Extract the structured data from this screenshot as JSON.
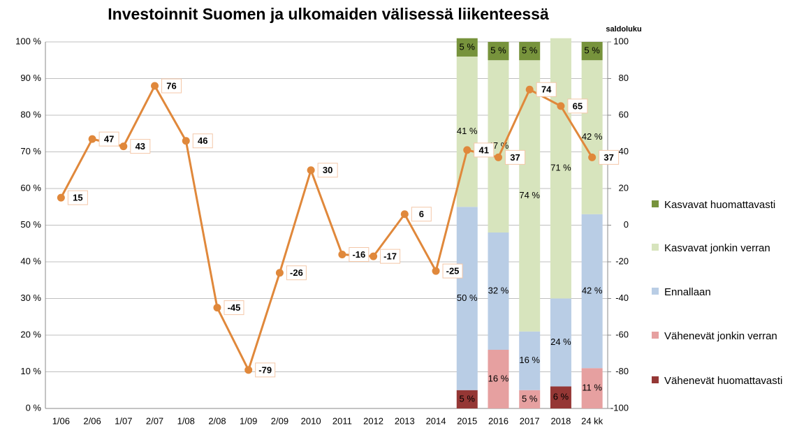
{
  "chart_data": {
    "type": "bar_line",
    "title": "Investoinnit Suomen ja ulkomaiden välisessä liikenteessä",
    "y2_label": "saldoluku",
    "categories": [
      "1/06",
      "2/06",
      "1/07",
      "2/07",
      "1/08",
      "2/08",
      "1/09",
      "2/09",
      "2010",
      "2011",
      "2012",
      "2013",
      "2014",
      "2015",
      "2016",
      "2017",
      "2018",
      "24 kk"
    ],
    "ylim": [
      0,
      100
    ],
    "yticks": [
      {
        "value": 0,
        "label": "0 %"
      },
      {
        "value": 10,
        "label": "10 %"
      },
      {
        "value": 20,
        "label": "20 %"
      },
      {
        "value": 30,
        "label": "30 %"
      },
      {
        "value": 40,
        "label": "40 %"
      },
      {
        "value": 50,
        "label": "50 %"
      },
      {
        "value": 60,
        "label": "60 %"
      },
      {
        "value": 70,
        "label": "70 %"
      },
      {
        "value": 80,
        "label": "80 %"
      },
      {
        "value": 90,
        "label": "90 %"
      },
      {
        "value": 100,
        "label": "100 %"
      }
    ],
    "y2lim": [
      -100,
      100
    ],
    "y2ticks": [
      -100,
      -80,
      -60,
      -40,
      -20,
      0,
      20,
      40,
      60,
      80,
      100
    ],
    "grid": true,
    "legend": "right",
    "series": [
      {
        "name": "Vähenevät huomattavasti",
        "color": "#953735",
        "values": [
          null,
          null,
          null,
          null,
          null,
          null,
          null,
          null,
          null,
          null,
          null,
          null,
          null,
          5,
          null,
          null,
          6,
          null
        ],
        "value_labels": [
          null,
          null,
          null,
          null,
          null,
          null,
          null,
          null,
          null,
          null,
          null,
          null,
          null,
          "5 %",
          null,
          null,
          "6 %",
          null
        ]
      },
      {
        "name": "Vähenevät jonkin verran",
        "color": "#e6a0a0",
        "values": [
          null,
          null,
          null,
          null,
          null,
          null,
          null,
          null,
          null,
          null,
          null,
          null,
          null,
          null,
          16,
          5,
          null,
          11
        ],
        "value_labels": [
          null,
          null,
          null,
          null,
          null,
          null,
          null,
          null,
          null,
          null,
          null,
          null,
          null,
          null,
          "16 %",
          "5 %",
          null,
          "11 %"
        ]
      },
      {
        "name": "Ennallaan",
        "color": "#b9cde5",
        "values": [
          null,
          null,
          null,
          null,
          null,
          null,
          null,
          null,
          null,
          null,
          null,
          null,
          null,
          50,
          32,
          16,
          24,
          42
        ],
        "value_labels": [
          null,
          null,
          null,
          null,
          null,
          null,
          null,
          null,
          null,
          null,
          null,
          null,
          null,
          "50 %",
          "32 %",
          "16 %",
          "24 %",
          "42 %"
        ]
      },
      {
        "name": "Kasvavat jonkin verran",
        "color": "#d7e4bd",
        "values": [
          null,
          null,
          null,
          null,
          null,
          null,
          null,
          null,
          null,
          null,
          null,
          null,
          null,
          41,
          47,
          74,
          71,
          42
        ],
        "value_labels": [
          null,
          null,
          null,
          null,
          null,
          null,
          null,
          null,
          null,
          null,
          null,
          null,
          null,
          "41 %",
          "47 %",
          "74 %",
          "71 %",
          "42 %"
        ]
      },
      {
        "name": "Kasvavat huomattavasti",
        "color": "#77933c",
        "values": [
          null,
          null,
          null,
          null,
          null,
          null,
          null,
          null,
          null,
          null,
          null,
          null,
          null,
          5,
          5,
          5,
          null,
          5
        ],
        "value_labels": [
          null,
          null,
          null,
          null,
          null,
          null,
          null,
          null,
          null,
          null,
          null,
          null,
          null,
          "5 %",
          "5 %",
          "5 %",
          null,
          "5 %"
        ]
      },
      {
        "type": "line",
        "axis": "y2",
        "color": "#e0883b",
        "values": [
          15,
          47,
          43,
          76,
          46,
          -45,
          -79,
          -26,
          30,
          -16,
          -17,
          6,
          -25,
          41,
          37,
          74,
          65,
          37
        ]
      }
    ]
  }
}
